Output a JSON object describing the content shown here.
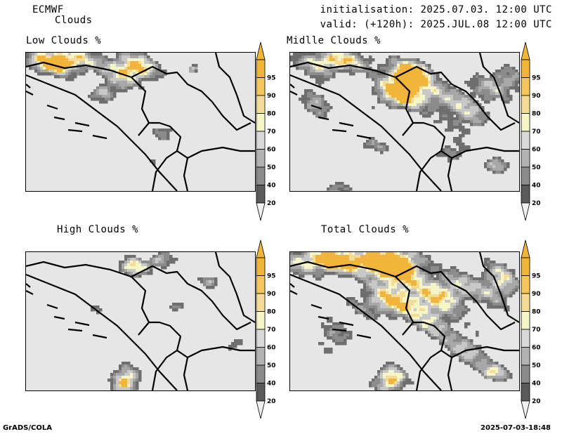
{
  "header": {
    "model": "ECMWF",
    "product": "Clouds",
    "init": "initialisation: 2025.07.03. 12:00 UTC",
    "valid": "valid: (+120h): 2025.JUL.08 12:00 UTC"
  },
  "panels": [
    {
      "title": "Low Clouds %"
    },
    {
      "title": "Midlle Clouds %"
    },
    {
      "title": "High Clouds %"
    },
    {
      "title": "Total Clouds %"
    }
  ],
  "colorbar": {
    "levels": [
      "95",
      "90",
      "80",
      "70",
      "60",
      "50",
      "40",
      "20"
    ],
    "colors": [
      "#f0b53a",
      "#f5c75a",
      "#f5dc96",
      "#f5f5c8",
      "#d9d9d9",
      "#b3b3b3",
      "#8c8c8c",
      "#5a5a5a"
    ],
    "arrow_top_color": "#f0b53a",
    "arrow_bottom_color": "#f0f0f0"
  },
  "footer": {
    "left": "GrADS/COLA",
    "right": "2025-07-03-18:48"
  },
  "map_colors": {
    "background": "#e6e6e6",
    "c40": "#6e6e6e",
    "c50": "#8c8c8c",
    "c60": "#a8a8a8",
    "c70": "#c8c8c8",
    "c80": "#f5f5c8",
    "c90": "#f5dc96",
    "c95": "#f0b53a"
  }
}
